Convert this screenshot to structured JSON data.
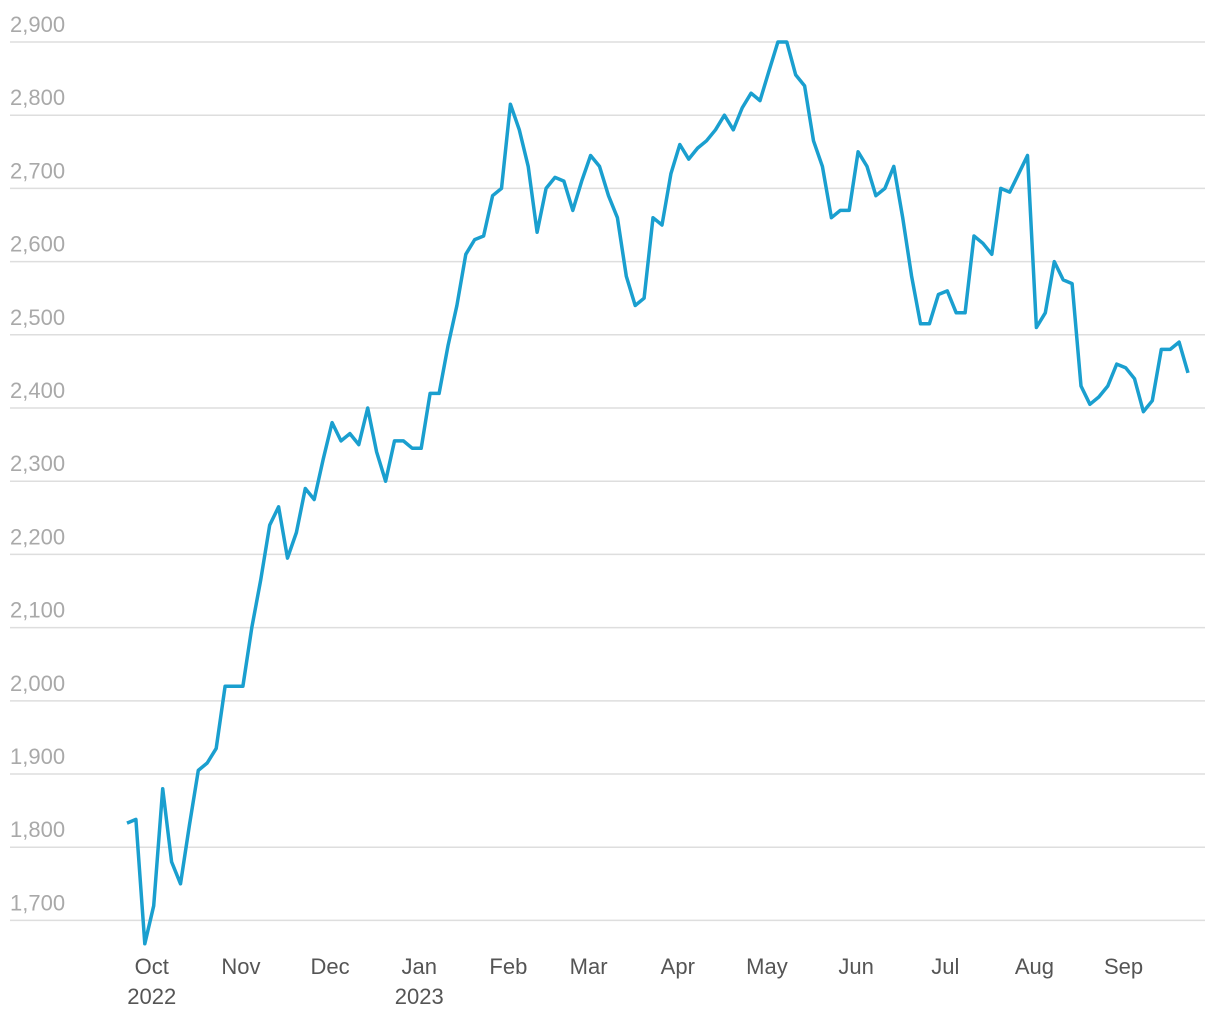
{
  "chart_data": {
    "type": "line",
    "color": "#1a9fcf",
    "grid": true,
    "categories": [
      null,
      null,
      null,
      "Oct 2022",
      null,
      null,
      null,
      null,
      null,
      null,
      null,
      null,
      null,
      "Nov",
      null,
      null,
      null,
      null,
      null,
      null,
      null,
      null,
      null,
      "Dec",
      null,
      null,
      null,
      null,
      null,
      null,
      null,
      null,
      null,
      "Jan 2023",
      null,
      null,
      null,
      null,
      null,
      null,
      null,
      null,
      null,
      "Feb",
      null,
      null,
      null,
      null,
      null,
      null,
      null,
      null,
      "Mar",
      null,
      null,
      null,
      null,
      null,
      null,
      null,
      null,
      null,
      "Apr",
      null,
      null,
      null,
      null,
      null,
      null,
      null,
      null,
      null,
      "May",
      null,
      null,
      null,
      null,
      null,
      null,
      null,
      null,
      null,
      "Jun",
      null,
      null,
      null,
      null,
      null,
      null,
      null,
      null,
      null,
      "Jul",
      null,
      null,
      null,
      null,
      null,
      null,
      null,
      null,
      null,
      "Aug",
      null,
      null,
      null,
      null,
      null,
      null,
      null,
      null,
      null,
      "Sep",
      null,
      null,
      null,
      null,
      null,
      null,
      null
    ],
    "values": [
      1833,
      1838,
      1668,
      1720,
      1880,
      1780,
      1750,
      1830,
      1905,
      1915,
      1935,
      2020,
      2020,
      2020,
      2100,
      2165,
      2240,
      2265,
      2195,
      2230,
      2290,
      2275,
      2330,
      2380,
      2355,
      2365,
      2350,
      2400,
      2340,
      2300,
      2355,
      2355,
      2345,
      2345,
      2420,
      2420,
      2485,
      2540,
      2610,
      2630,
      2635,
      2690,
      2700,
      2815,
      2780,
      2730,
      2640,
      2700,
      2715,
      2710,
      2670,
      2710,
      2745,
      2730,
      2690,
      2660,
      2580,
      2540,
      2550,
      2660,
      2650,
      2720,
      2760,
      2740,
      2755,
      2765,
      2780,
      2800,
      2780,
      2810,
      2830,
      2820,
      2860,
      2900,
      2900,
      2855,
      2840,
      2765,
      2730,
      2660,
      2670,
      2670,
      2750,
      2730,
      2690,
      2700,
      2730,
      2660,
      2580,
      2515,
      2515,
      2555,
      2560,
      2530,
      2530,
      2635,
      2625,
      2610,
      2700,
      2695,
      2720,
      2745,
      2510,
      2530,
      2600,
      2575,
      2570,
      2430,
      2405,
      2415,
      2430,
      2460,
      2455,
      2440,
      2395,
      2410,
      2480,
      2480,
      2490,
      2448
    ],
    "ylim": [
      1660,
      2900
    ],
    "yticks": [
      {
        "value": 1700,
        "label": "1,700"
      },
      {
        "value": 1800,
        "label": "1,800"
      },
      {
        "value": 1900,
        "label": "1,900"
      },
      {
        "value": 2000,
        "label": "2,000"
      },
      {
        "value": 2100,
        "label": "2,100"
      },
      {
        "value": 2200,
        "label": "2,200"
      },
      {
        "value": 2300,
        "label": "2,300"
      },
      {
        "value": 2400,
        "label": "2,400"
      },
      {
        "value": 2500,
        "label": "2,500"
      },
      {
        "value": 2600,
        "label": "2,600"
      },
      {
        "value": 2700,
        "label": "2,700"
      },
      {
        "value": 2800,
        "label": "2,800"
      },
      {
        "value": 2900,
        "label": "2,900"
      }
    ]
  }
}
